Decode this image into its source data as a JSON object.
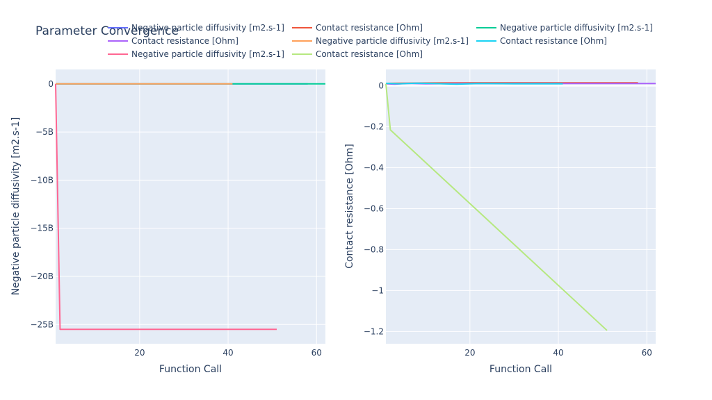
{
  "chart_data": {
    "type": "line",
    "title": "Parameter Convergence",
    "legend": {
      "placement": "top",
      "columns": 3
    },
    "grid": true,
    "colors": {
      "plot_bg": "#e5ecf6",
      "grid": "#ffffff",
      "text": "#2a3f5f"
    },
    "subplots": [
      {
        "xlabel": "Function Call",
        "ylabel": "Negative particle diffusivity [m2.s-1]",
        "xlim": [
          1,
          62
        ],
        "ylim": [
          -27000000000,
          1500000000
        ],
        "xticks": [
          20,
          40,
          60
        ],
        "xtick_labels": [
          "20",
          "40",
          "60"
        ],
        "yticks": [
          0,
          -5000000000,
          -10000000000,
          -15000000000,
          -20000000000,
          -25000000000
        ],
        "ytick_labels": [
          "0",
          "−5B",
          "−10B",
          "−15B",
          "−20B",
          "−25B"
        ]
      },
      {
        "xlabel": "Function Call",
        "ylabel": "Contact resistance [Ohm]",
        "xlim": [
          1,
          62
        ],
        "ylim": [
          -1.26,
          0.08
        ],
        "xticks": [
          20,
          40,
          60
        ],
        "xtick_labels": [
          "20",
          "40",
          "60"
        ],
        "yticks": [
          0,
          -0.2,
          -0.4,
          -0.6,
          -0.8,
          -1,
          -1.2
        ],
        "ytick_labels": [
          "0",
          "−0.2",
          "−0.4",
          "−0.6",
          "−0.8",
          "−1",
          "−1.2"
        ]
      }
    ],
    "series": [
      {
        "name": "Negative particle diffusivity [m2.s-1]",
        "subplot": 0,
        "color": "#636efa",
        "x": [
          1,
          58
        ],
        "y": [
          0,
          0
        ]
      },
      {
        "name": "Contact resistance [Ohm]",
        "subplot": 1,
        "color": "#ef553b",
        "x": [
          1,
          10,
          20,
          30,
          40,
          50,
          58
        ],
        "y": [
          0.012,
          0.014,
          0.015,
          0.015,
          0.015,
          0.015,
          0.015
        ]
      },
      {
        "name": "Negative particle diffusivity [m2.s-1]",
        "subplot": 0,
        "color": "#00cc96",
        "x": [
          1,
          62
        ],
        "y": [
          0,
          0
        ]
      },
      {
        "name": "Contact resistance [Ohm]",
        "subplot": 1,
        "color": "#ab63fa",
        "x": [
          1,
          3,
          6,
          10,
          20,
          30,
          40,
          50,
          62
        ],
        "y": [
          0.01,
          0.008,
          0.012,
          0.01,
          0.011,
          0.011,
          0.011,
          0.011,
          0.011
        ]
      },
      {
        "name": "Negative particle diffusivity [m2.s-1]",
        "subplot": 0,
        "color": "#ffa15a",
        "x": [
          1,
          41
        ],
        "y": [
          0,
          0
        ]
      },
      {
        "name": "Contact resistance [Ohm]",
        "subplot": 1,
        "color": "#19d3f3",
        "x": [
          1,
          4,
          8,
          12,
          17,
          22,
          30,
          41
        ],
        "y": [
          0.012,
          0.01,
          0.013,
          0.011,
          0.008,
          0.011,
          0.01,
          0.01
        ]
      },
      {
        "name": "Negative particle diffusivity [m2.s-1]",
        "subplot": 0,
        "color": "#ff6692",
        "x": [
          1,
          2,
          51
        ],
        "y": [
          0,
          -25500000000,
          -25500000000
        ]
      },
      {
        "name": "Contact resistance [Ohm]",
        "subplot": 1,
        "color": "#b6e880",
        "x": [
          1,
          2,
          51
        ],
        "y": [
          0.01,
          -0.215,
          -1.195
        ]
      }
    ]
  }
}
